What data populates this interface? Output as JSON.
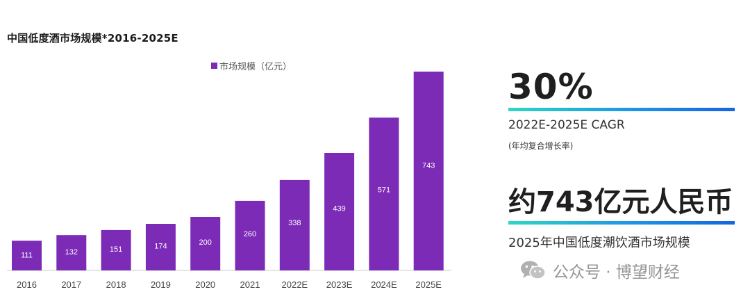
{
  "chart_data": {
    "type": "bar",
    "title": "中国低度酒市场规模*2016-2025E",
    "categories": [
      "2016",
      "2017",
      "2018",
      "2019",
      "2020",
      "2021",
      "2022E",
      "2023E",
      "2024E",
      "2025E"
    ],
    "series": [
      {
        "name": "市场规模（亿元）",
        "values": [
          111,
          132,
          151,
          174,
          200,
          260,
          338,
          439,
          571,
          743
        ]
      }
    ],
    "xlabel": "",
    "ylabel": "",
    "ylim": [
      0,
      743
    ],
    "grid": false,
    "legend_position": "top",
    "bar_color": "#7b2bb5",
    "data_labels": true
  },
  "stats": {
    "cagr_value": "30%",
    "cagr_label": "2022E-2025E CAGR",
    "cagr_sublabel": "(年均复合增长率)",
    "market_value": "约743亿元人民币",
    "market_label": "2025年中国低度潮饮酒市场规模"
  },
  "watermark": {
    "text": "公众号 · 博望财经",
    "icon": "wechat-icon"
  },
  "colors": {
    "accent_gradient_start": "#2fd6c4",
    "accent_gradient_end": "#1565e0"
  }
}
